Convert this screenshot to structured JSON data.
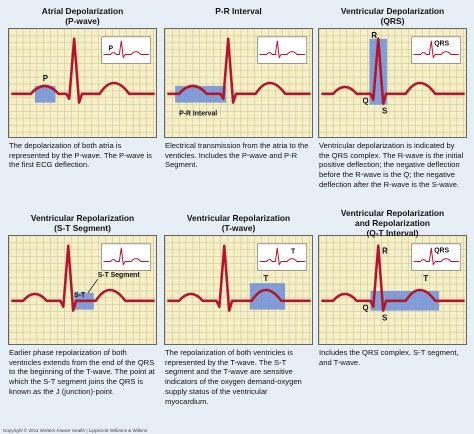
{
  "panels": [
    {
      "title_line1": "Atrial Depolarization",
      "title_line2": "(P-wave)",
      "labels": [
        "P",
        "P"
      ],
      "caption": "The depolarization of both atria is represented by the P-wave. The P-wave is the first ECG deflection."
    },
    {
      "title_line1": "P-R Interval",
      "title_line2": "",
      "labels": [
        "P-R Interval"
      ],
      "caption": "Electrical transmission from the atria to the venticles. Includes the P-wave and P-R Segment."
    },
    {
      "title_line1": "Ventricular Depolarization",
      "title_line2": "(QRS)",
      "labels": [
        "R",
        "Q",
        "S",
        "QRS"
      ],
      "caption": "Ventricular depolarization is indicated by the QRS complex. The R-wave is the initial positive deflection; the negative deflection before the R-wave is the Q; the negative deflection after the R-wave is the S-wave."
    },
    {
      "title_line1": "Ventricular Repolarization",
      "title_line2": "(S-T Segment)",
      "labels": [
        "S-T Segment",
        "S-T"
      ],
      "caption": "Earlier phase repolarization of both ventricles extends from the end of the QRS to the beginning of the T-wave. The point at which the S-T segment joins the QRS is known as the J (junction)-point."
    },
    {
      "title_line1": "Ventricular Repolarization",
      "title_line2": "(T-wave)",
      "labels": [
        "T",
        "T"
      ],
      "caption": "The repolarization of both ventricles is represented by the T-wave. The S-T segment and the T-wave are sensitive indicators of the oxygen demand-oxygen supply status of the ventricular myocardium."
    },
    {
      "title_line1": "Ventricular Repolarization",
      "title_line2": "and Repolarization",
      "title_line3": "(Q-T Interval)",
      "labels": [
        "R",
        "QRS",
        "T",
        "Q",
        "S"
      ],
      "caption": "Includes the QRS complex, S-T segment, and T-wave."
    }
  ],
  "copyright": "Copyright © 2011 Wolters Kluwer Health | Lippincott Williams & Wilkins",
  "colors": {
    "grid_bg": "#f6f0c6",
    "grid_line": "#c9bf9a",
    "trace": "#b5152b",
    "highlight": "#6f8fd8",
    "page_bg": "#e7eff6"
  }
}
